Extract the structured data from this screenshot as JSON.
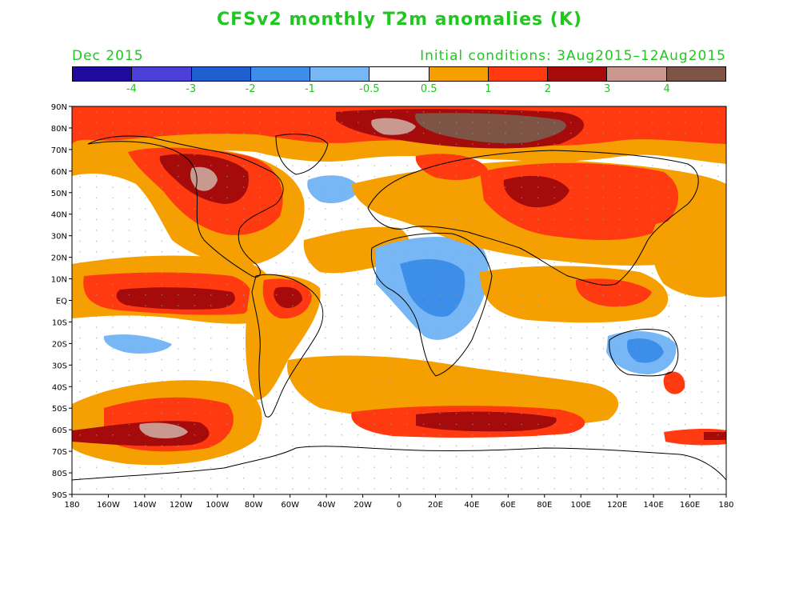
{
  "title": "CFSv2 monthly T2m anomalies (K)",
  "month": "Dec 2015",
  "init": "Initial conditions: 3Aug2015–12Aug2015",
  "colors": {
    "text": "#1ec81e"
  },
  "colorbar": {
    "colors": [
      "#1e0a9b",
      "#4a3fd6",
      "#1f5fd0",
      "#3c8ee8",
      "#78b7f5",
      "#ffffff",
      "#f5a000",
      "#ff3a10",
      "#a50b0b",
      "#c9998f",
      "#7d5445"
    ],
    "labels": [
      "-4",
      "-3",
      "-2",
      "-1",
      "-0.5",
      "0.5",
      "1",
      "2",
      "3",
      "4"
    ]
  },
  "axes": {
    "lat_labels": [
      "90N",
      "80N",
      "70N",
      "60N",
      "50N",
      "40N",
      "30N",
      "20N",
      "10N",
      "EQ",
      "10S",
      "20S",
      "30S",
      "40S",
      "50S",
      "60S",
      "70S",
      "80S",
      "90S"
    ],
    "lon_labels": [
      "180",
      "160W",
      "140W",
      "120W",
      "100W",
      "80W",
      "60W",
      "40W",
      "20W",
      "0",
      "20E",
      "40E",
      "60E",
      "80E",
      "100E",
      "120E",
      "140E",
      "160E",
      "180"
    ]
  }
}
